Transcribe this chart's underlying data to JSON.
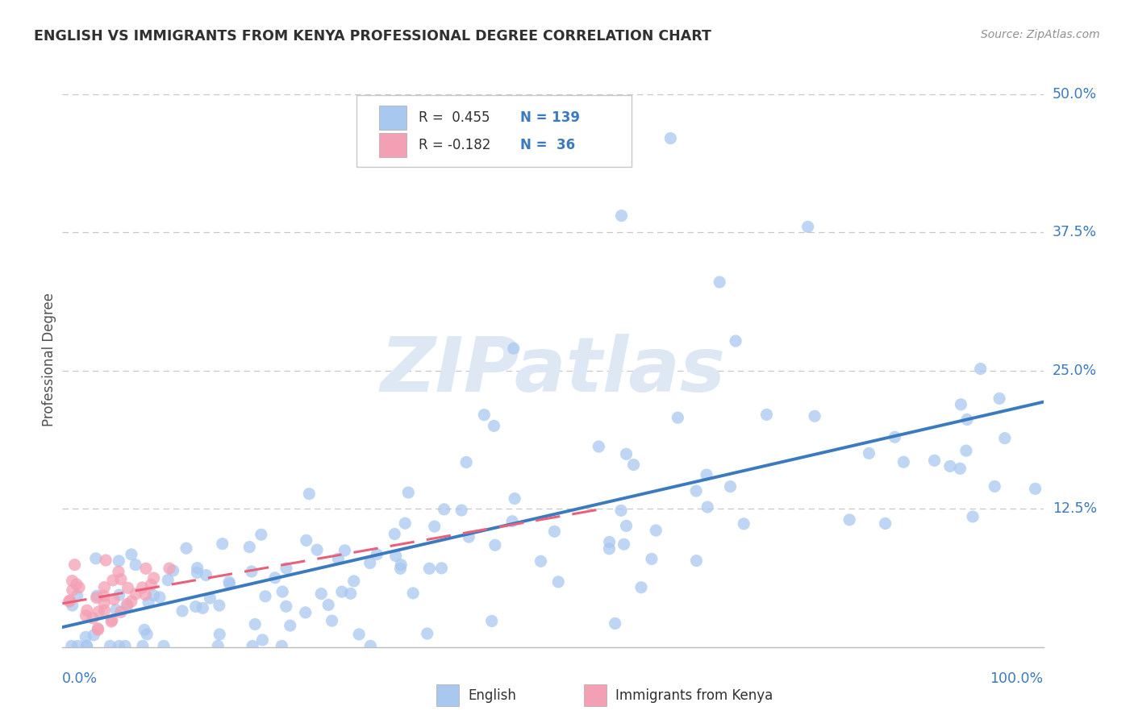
{
  "title": "ENGLISH VS IMMIGRANTS FROM KENYA PROFESSIONAL DEGREE CORRELATION CHART",
  "source": "Source: ZipAtlas.com",
  "ylabel": "Professional Degree",
  "legend_english_R": "0.455",
  "legend_english_N": "139",
  "legend_kenya_R": "-0.182",
  "legend_kenya_N": "36",
  "english_color": "#a8c8f0",
  "kenya_color": "#f4a0b4",
  "english_line_color": "#3a7abf",
  "kenya_line_color": "#e8607a",
  "watermark_color": "#dde8f4",
  "background_color": "#ffffff",
  "grid_color": "#c8c8c8",
  "title_color": "#303030",
  "source_color": "#909090",
  "axis_label_color": "#3a7abf",
  "ylabel_color": "#505050",
  "scatter_alpha": 0.75,
  "scatter_size": 120,
  "ymax": 0.52,
  "xmax": 1.0,
  "ytick_vals": [
    0.0,
    0.125,
    0.25,
    0.375,
    0.5
  ],
  "ytick_labels": [
    "0.0%",
    "12.5%",
    "25.0%",
    "37.5%",
    "50.0%"
  ]
}
